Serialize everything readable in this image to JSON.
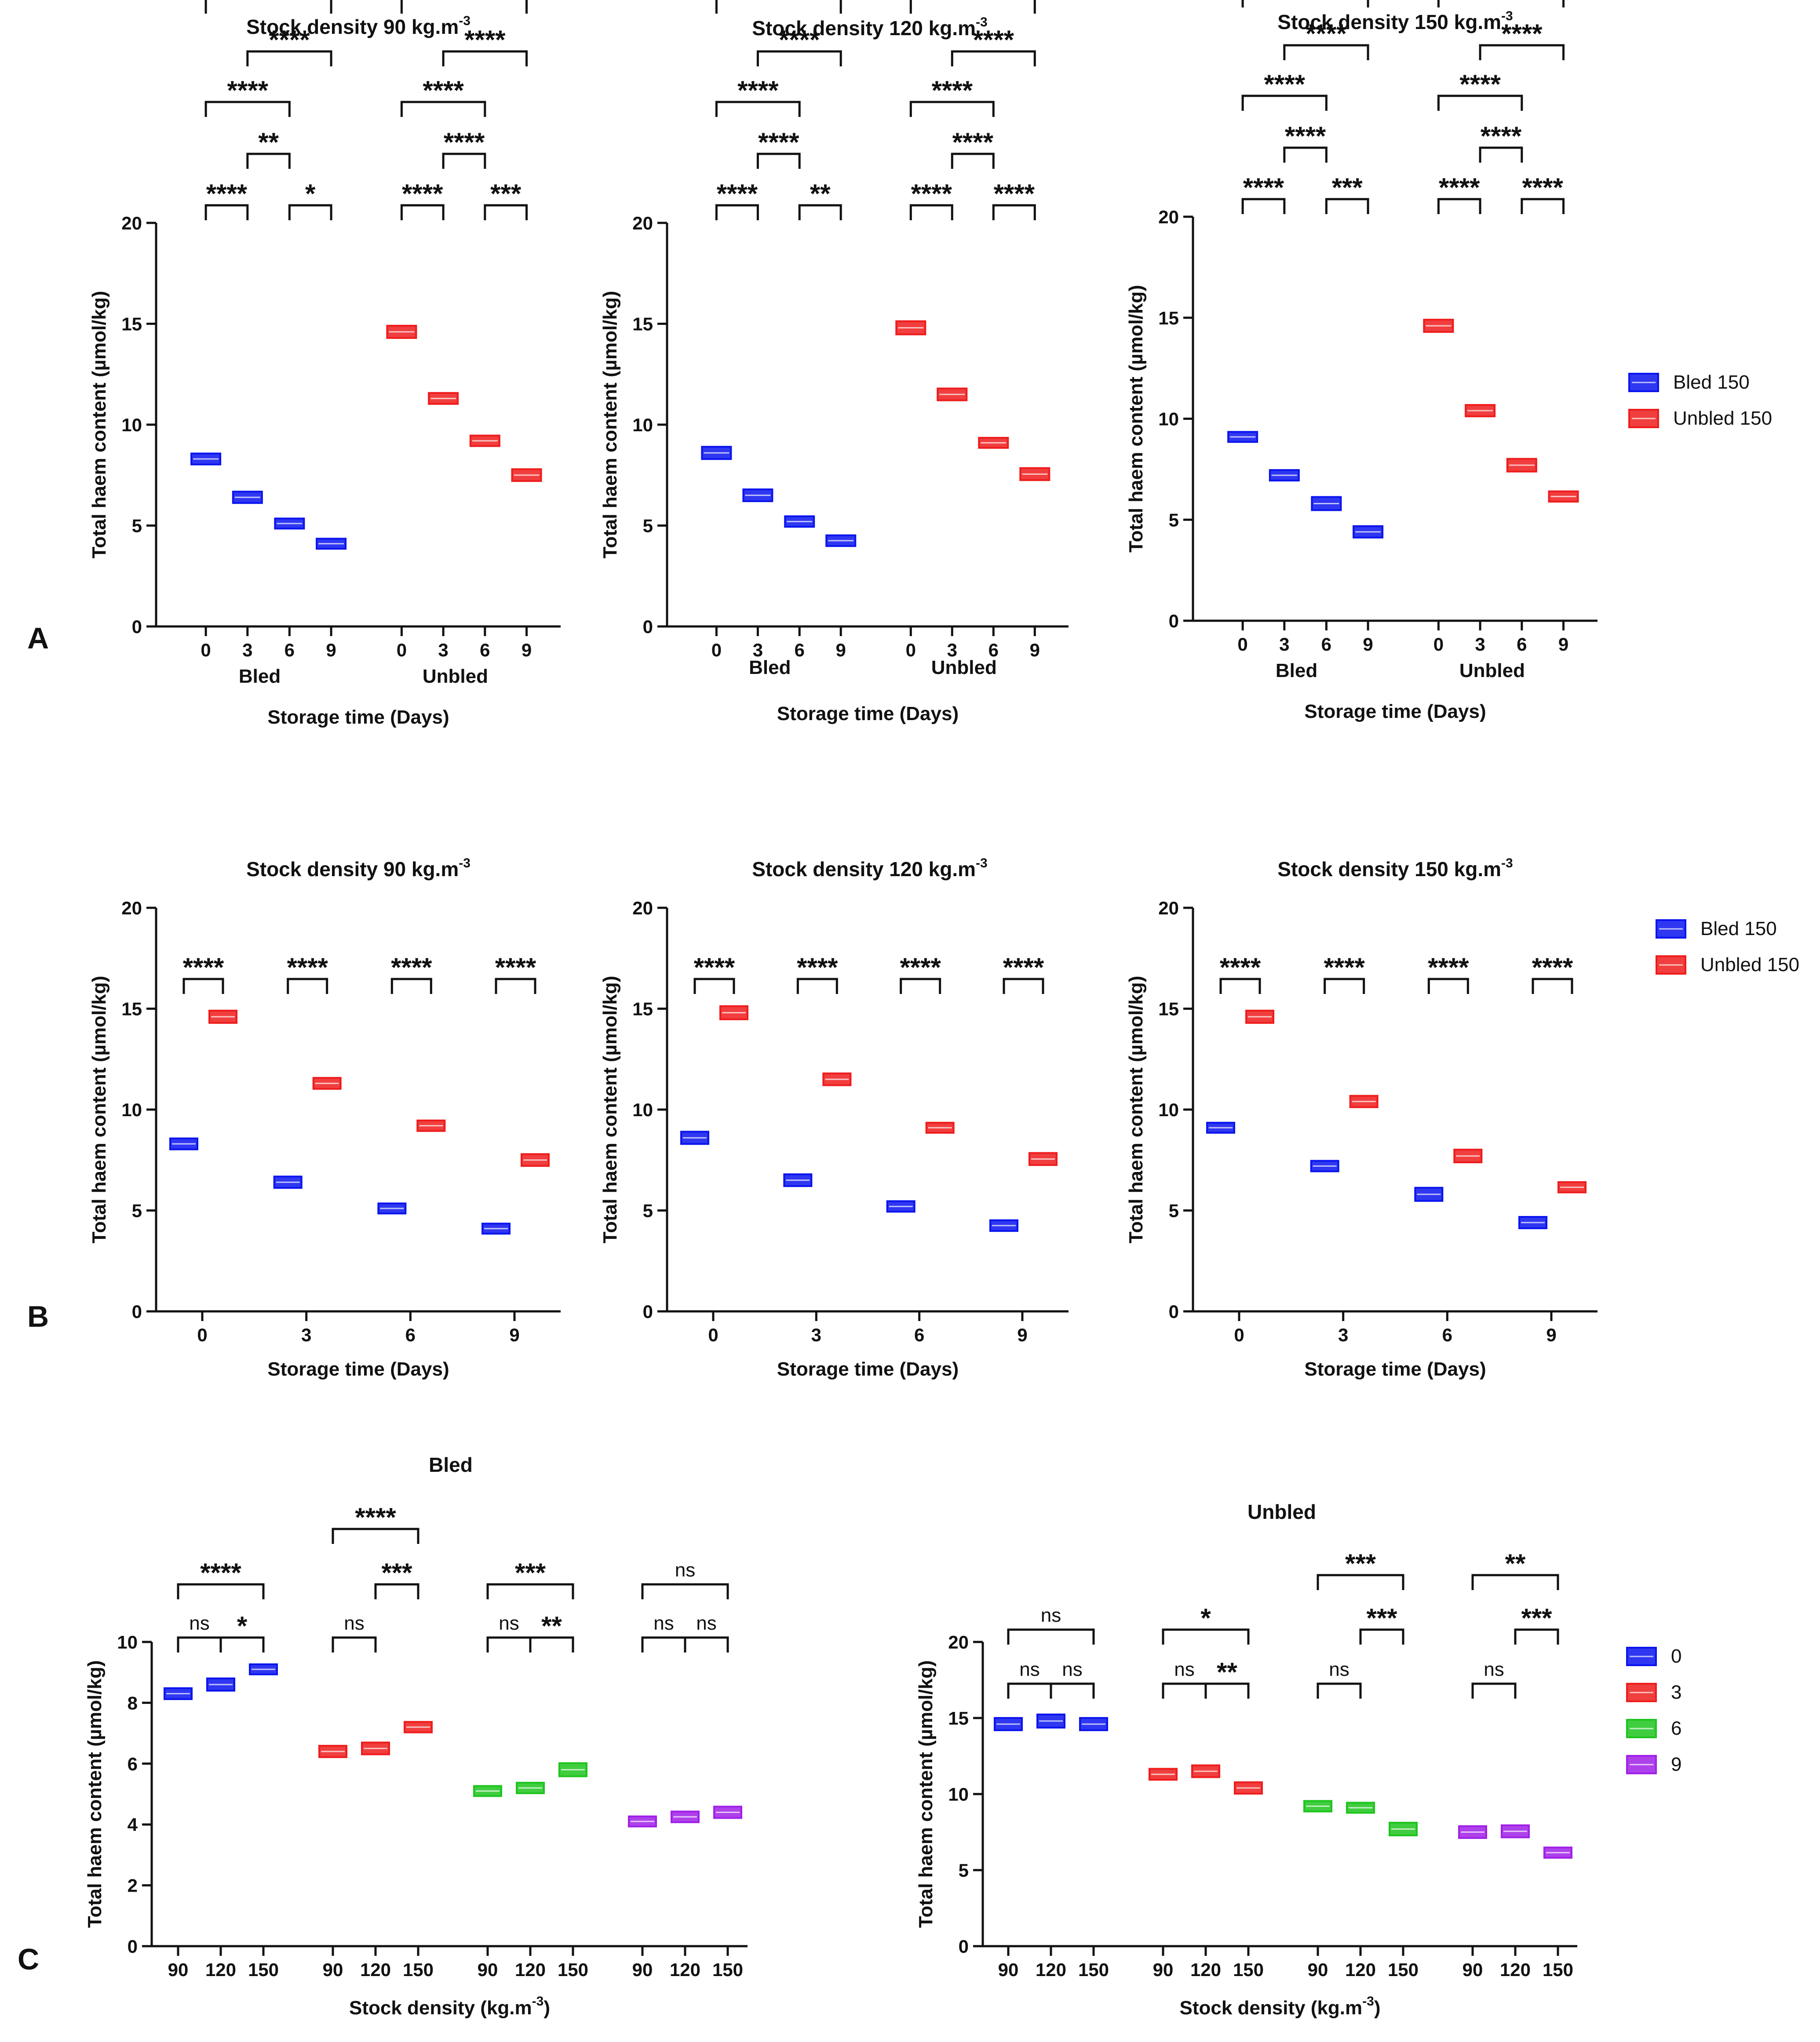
{
  "figure": {
    "panel_labels": [
      "A",
      "B",
      "C"
    ],
    "colors": {
      "bled": "#0a14ee",
      "unbled": "#ee1c1c",
      "day0": "#0a14ee",
      "day3": "#ee1c1c",
      "day6": "#1ec41e",
      "day9": "#a020e8",
      "axis": "#111111"
    },
    "legend_ab": [
      {
        "label": "Bled 150",
        "color": "#0a14ee"
      },
      {
        "label": "Unbled 150",
        "color": "#ee1c1c"
      }
    ],
    "legend_c": [
      {
        "label": "0",
        "color": "#0a14ee"
      },
      {
        "label": "3",
        "color": "#ee1c1c"
      },
      {
        "label": "6",
        "color": "#1ec41e"
      },
      {
        "label": "9",
        "color": "#a020e8"
      }
    ]
  },
  "chart_data": [
    {
      "id": "A1",
      "type": "bar",
      "title": "Stock density 90 kg.m",
      "title_sup": "-3",
      "xlabel": "Storage time (Days)",
      "ylabel": "Total haem content (µmol/kg)",
      "ylim": [
        0,
        20
      ],
      "yticks": [
        0,
        5,
        10,
        15,
        20
      ],
      "groups": [
        {
          "name": "Bled",
          "categories": [
            "0",
            "3",
            "6",
            "9"
          ],
          "values": [
            8.3,
            6.4,
            5.1,
            4.1
          ]
        },
        {
          "name": "Unbled",
          "categories": [
            "0",
            "3",
            "6",
            "9"
          ],
          "values": [
            14.6,
            11.3,
            9.2,
            7.5
          ]
        }
      ],
      "annotations": [
        "****",
        "****",
        "****",
        "**",
        "****",
        "*",
        "****",
        "****",
        "****",
        "****",
        "****",
        "***"
      ]
    },
    {
      "id": "A2",
      "type": "bar",
      "title": "Stock density 120 kg.m",
      "title_sup": "-3",
      "xlabel": "Storage time (Days)",
      "ylabel": "Total haem content (µmol/kg)",
      "ylim": [
        0,
        20
      ],
      "yticks": [
        0,
        5,
        10,
        15,
        20
      ],
      "groups": [
        {
          "name": "Bled",
          "categories": [
            "0",
            "3",
            "6",
            "9"
          ],
          "values": [
            8.6,
            6.5,
            5.2,
            4.25
          ]
        },
        {
          "name": "Unbled",
          "categories": [
            "0",
            "3",
            "6",
            "9"
          ],
          "values": [
            14.8,
            11.5,
            9.1,
            7.55
          ]
        }
      ],
      "annotations": [
        "****",
        "****",
        "****",
        "****",
        "****",
        "**",
        "****",
        "****",
        "****",
        "****",
        "****",
        "****"
      ]
    },
    {
      "id": "A3",
      "type": "bar",
      "title": "Stock density 150 kg.m",
      "title_sup": "-3",
      "xlabel": "Storage time (Days)",
      "ylabel": "Total haem content (µmol/kg)",
      "ylim": [
        0,
        20
      ],
      "yticks": [
        0,
        5,
        10,
        15,
        20
      ],
      "groups": [
        {
          "name": "Bled",
          "categories": [
            "0",
            "3",
            "6",
            "9"
          ],
          "values": [
            9.1,
            7.2,
            5.8,
            4.4
          ]
        },
        {
          "name": "Unbled",
          "categories": [
            "0",
            "3",
            "6",
            "9"
          ],
          "values": [
            14.6,
            10.4,
            7.7,
            6.15
          ]
        }
      ],
      "annotations": [
        "****",
        "****",
        "****",
        "****",
        "****",
        "***",
        "****",
        "****",
        "****",
        "****",
        "****",
        "****"
      ]
    },
    {
      "id": "B1",
      "type": "bar",
      "title": "Stock density 90 kg.m",
      "title_sup": "-3",
      "xlabel": "Storage time (Days)",
      "ylabel": "Total haem content (µmol/kg)",
      "ylim": [
        0,
        20
      ],
      "yticks": [
        0,
        5,
        10,
        15,
        20
      ],
      "categories": [
        "0",
        "3",
        "6",
        "9"
      ],
      "series": [
        {
          "name": "Bled 150",
          "values": [
            8.3,
            6.4,
            5.1,
            4.1
          ]
        },
        {
          "name": "Unbled 150",
          "values": [
            14.6,
            11.3,
            9.2,
            7.5
          ]
        }
      ],
      "annotations": [
        "****",
        "****",
        "****",
        "****"
      ]
    },
    {
      "id": "B2",
      "type": "bar",
      "title": "Stock density 120 kg.m",
      "title_sup": "-3",
      "xlabel": "Storage time (Days)",
      "ylabel": "Total haem content (µmol/kg)",
      "ylim": [
        0,
        20
      ],
      "yticks": [
        0,
        5,
        10,
        15,
        20
      ],
      "categories": [
        "0",
        "3",
        "6",
        "9"
      ],
      "series": [
        {
          "name": "Bled 150",
          "values": [
            8.6,
            6.5,
            5.2,
            4.25
          ]
        },
        {
          "name": "Unbled 150",
          "values": [
            14.8,
            11.5,
            9.1,
            7.55
          ]
        }
      ],
      "annotations": [
        "****",
        "****",
        "****",
        "****"
      ]
    },
    {
      "id": "B3",
      "type": "bar",
      "title": "Stock density 150 kg.m",
      "title_sup": "-3",
      "xlabel": "Storage time (Days)",
      "ylabel": "Total haem content (µmol/kg)",
      "ylim": [
        0,
        20
      ],
      "yticks": [
        0,
        5,
        10,
        15,
        20
      ],
      "categories": [
        "0",
        "3",
        "6",
        "9"
      ],
      "series": [
        {
          "name": "Bled 150",
          "values": [
            9.1,
            7.2,
            5.8,
            4.4
          ]
        },
        {
          "name": "Unbled 150",
          "values": [
            14.6,
            10.4,
            7.7,
            6.15
          ]
        }
      ],
      "annotations": [
        "****",
        "****",
        "****",
        "****"
      ]
    },
    {
      "id": "C1",
      "type": "bar",
      "title": "Bled",
      "xlabel": "Stock density (kg.m",
      "xlabel_sup": "-3",
      "xlabel_end": ")",
      "ylabel": "Total haem content (µmol/kg)",
      "ylim": [
        0,
        10
      ],
      "yticks": [
        0,
        2,
        4,
        6,
        8,
        10
      ],
      "groups": [
        {
          "name": "0",
          "categories": [
            "90",
            "120",
            "150"
          ],
          "values": [
            8.3,
            8.6,
            9.1
          ]
        },
        {
          "name": "3",
          "categories": [
            "90",
            "120",
            "150"
          ],
          "values": [
            6.4,
            6.5,
            7.2
          ]
        },
        {
          "name": "6",
          "categories": [
            "90",
            "120",
            "150"
          ],
          "values": [
            5.1,
            5.2,
            5.8
          ]
        },
        {
          "name": "9",
          "categories": [
            "90",
            "120",
            "150"
          ],
          "values": [
            4.1,
            4.25,
            4.4
          ]
        }
      ],
      "annotations": [
        "****",
        "ns",
        "*",
        "****",
        "ns",
        "***",
        "***",
        "ns",
        "**",
        "ns",
        "ns",
        "ns"
      ]
    },
    {
      "id": "C2",
      "type": "bar",
      "title": "Unbled",
      "xlabel": "Stock density (kg.m",
      "xlabel_sup": "-3",
      "xlabel_end": ")",
      "ylabel": "Total haem content (µmol/kg)",
      "ylim": [
        0,
        20
      ],
      "yticks": [
        0,
        5,
        10,
        15,
        20
      ],
      "groups": [
        {
          "name": "0",
          "categories": [
            "90",
            "120",
            "150"
          ],
          "values": [
            14.6,
            14.8,
            14.6
          ]
        },
        {
          "name": "3",
          "categories": [
            "90",
            "120",
            "150"
          ],
          "values": [
            11.3,
            11.5,
            10.4
          ]
        },
        {
          "name": "6",
          "categories": [
            "90",
            "120",
            "150"
          ],
          "values": [
            9.2,
            9.1,
            7.7
          ]
        },
        {
          "name": "9",
          "categories": [
            "90",
            "120",
            "150"
          ],
          "values": [
            7.5,
            7.55,
            6.15
          ]
        }
      ],
      "annotations": [
        "ns",
        "ns",
        "ns",
        "*",
        "ns",
        "**",
        "***",
        "***",
        "ns",
        "**",
        "***",
        "ns"
      ]
    }
  ]
}
